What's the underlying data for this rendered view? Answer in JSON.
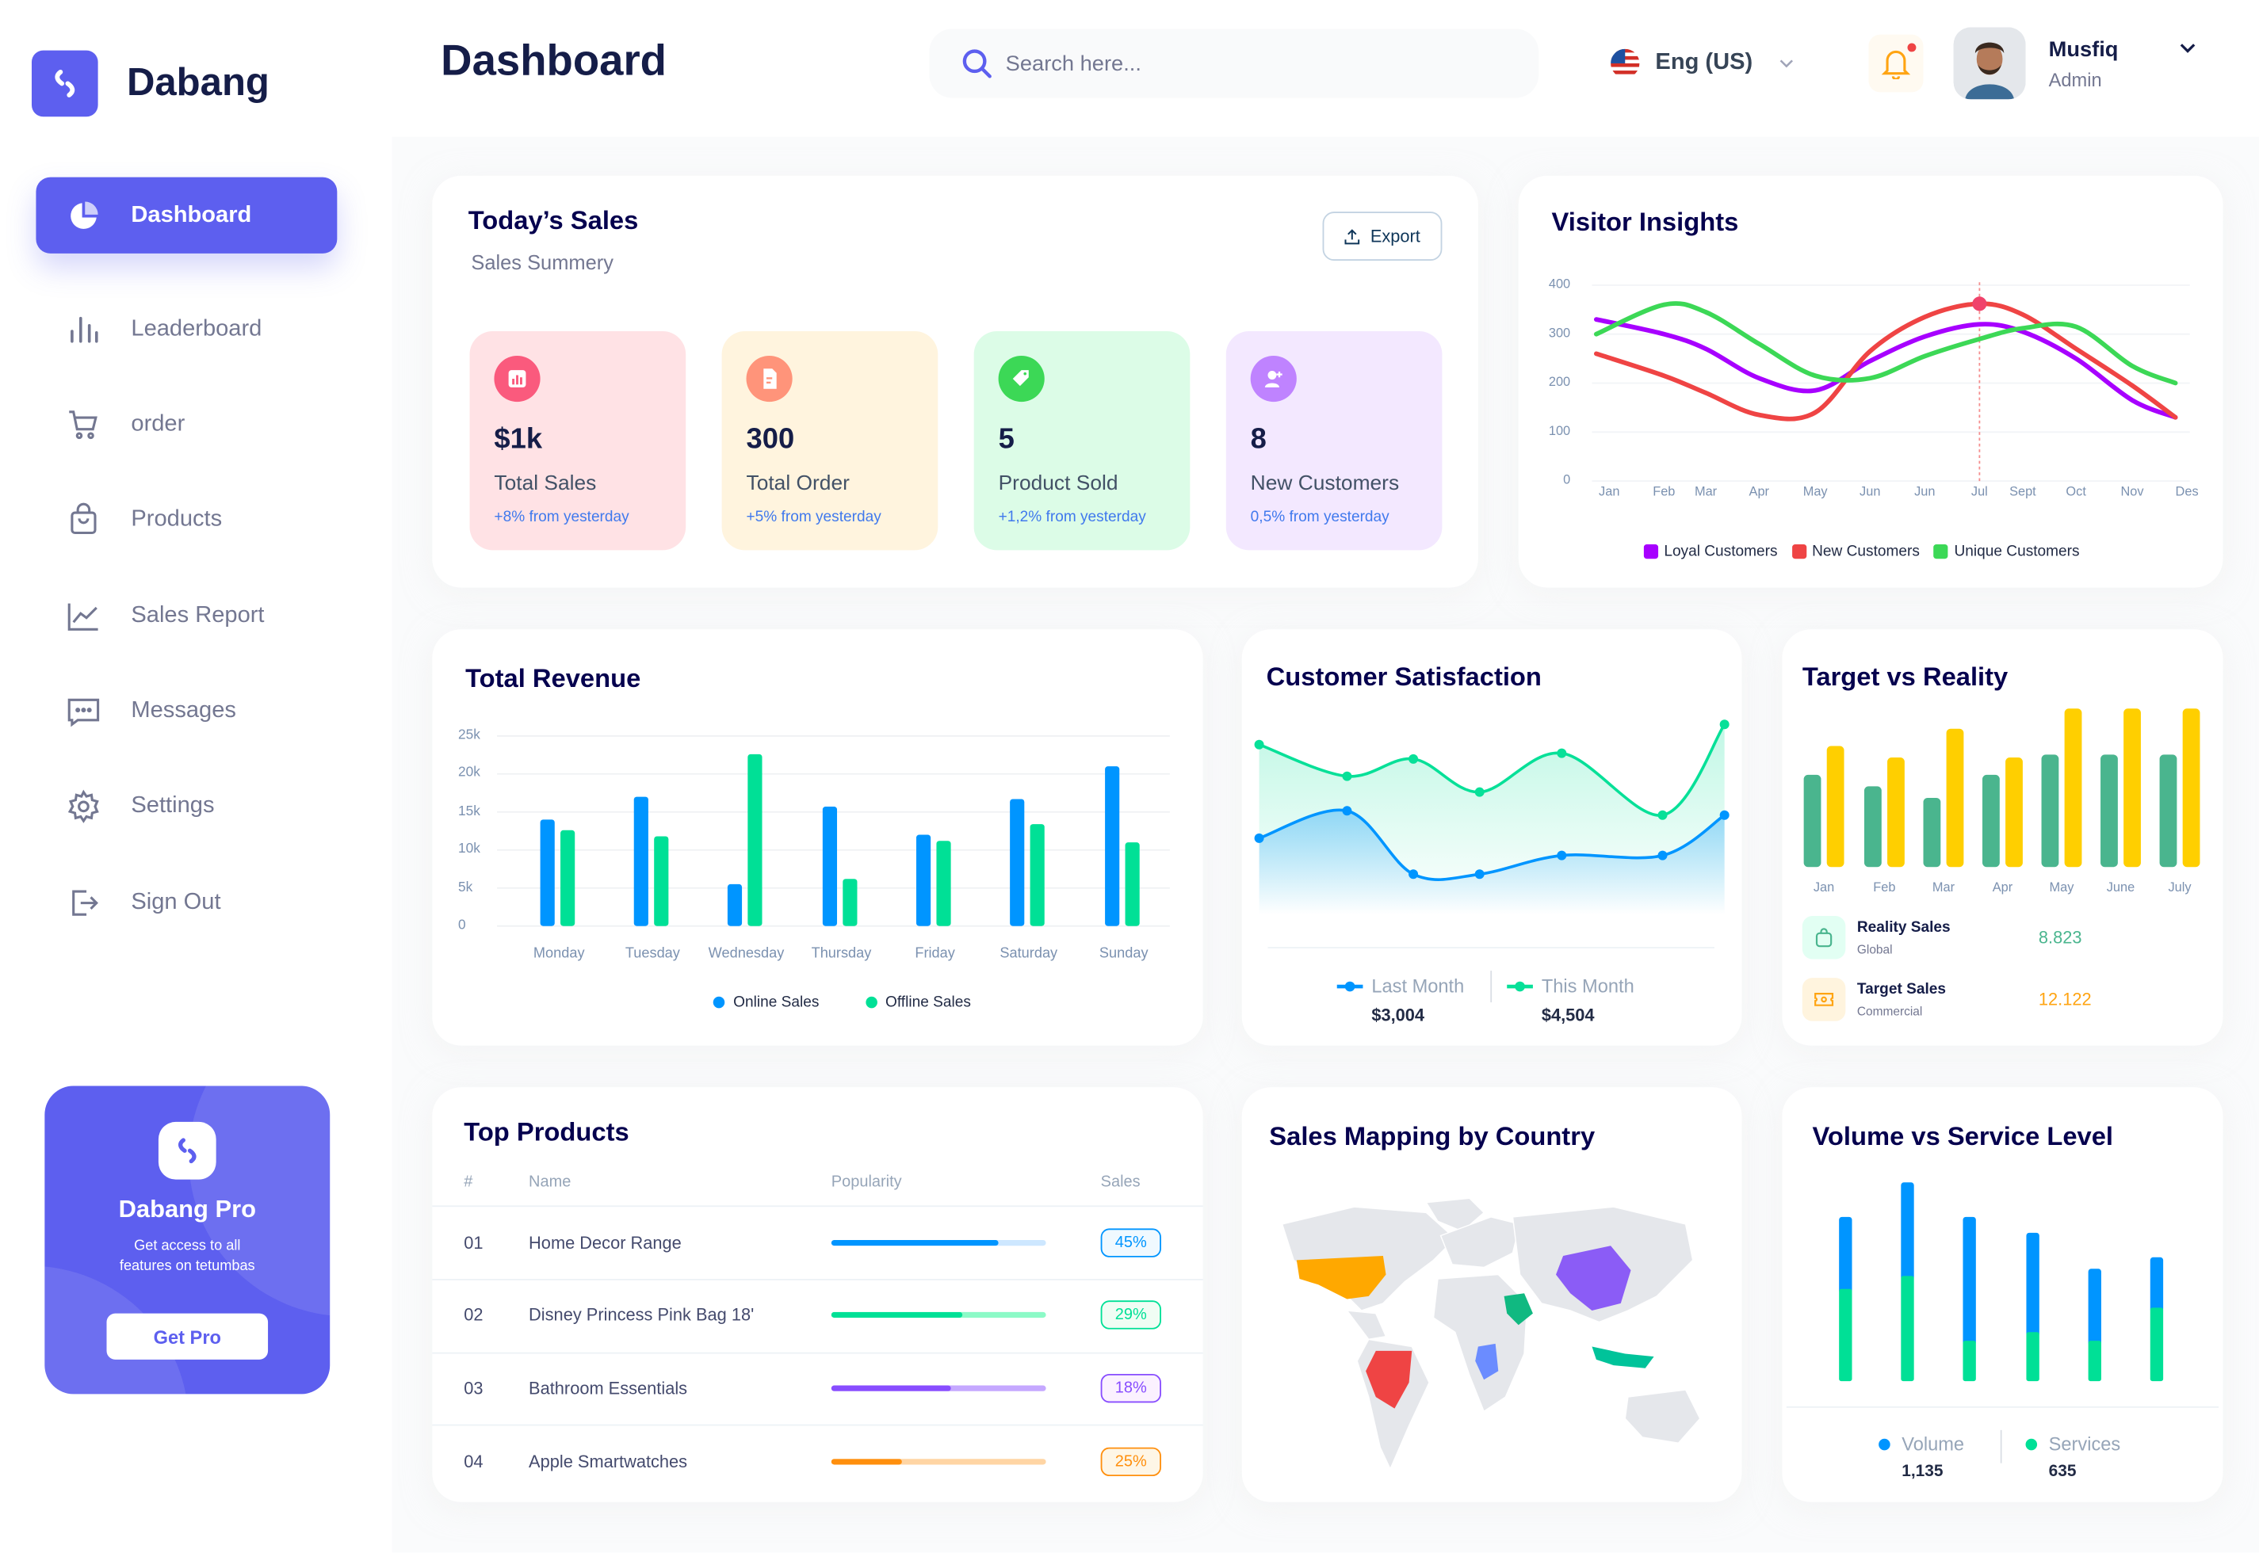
{
  "brand": {
    "name": "Dabang",
    "accent": "#5d5fef"
  },
  "header": {
    "title": "Dashboard",
    "search_placeholder": "Search here...",
    "language": "Eng (US)",
    "user": {
      "name": "Musfiq",
      "role": "Admin"
    },
    "notification_dot": true
  },
  "sidebar": {
    "items": [
      {
        "label": "Dashboard",
        "icon": "pie-chart-icon",
        "active": true
      },
      {
        "label": "Leaderboard",
        "icon": "bar-chart-icon"
      },
      {
        "label": "order",
        "icon": "cart-icon"
      },
      {
        "label": "Products",
        "icon": "shopping-bag-icon"
      },
      {
        "label": "Sales Report",
        "icon": "line-chart-icon"
      },
      {
        "label": "Messages",
        "icon": "message-icon"
      },
      {
        "label": "Settings",
        "icon": "gear-icon"
      },
      {
        "label": "Sign Out",
        "icon": "sign-out-icon"
      }
    ],
    "promo": {
      "title": "Dabang Pro",
      "text_line1": "Get access to all",
      "text_line2": "features on tetumbas",
      "button": "Get Pro"
    }
  },
  "todays_sales": {
    "title": "Today’s Sales",
    "subtitle": "Sales Summery",
    "export_label": "Export",
    "stats": [
      {
        "value": "$1k",
        "label": "Total Sales",
        "change": "+8% from yesterday",
        "bg": "#ffe2e5",
        "icon_bg": "#fa5a7d",
        "icon": "bar-chart-icon"
      },
      {
        "value": "300",
        "label": "Total Order",
        "change": "+5% from yesterday",
        "bg": "#fff4de",
        "icon_bg": "#ff947a",
        "icon": "document-icon"
      },
      {
        "value": "5",
        "label": "Product Sold",
        "change": "+1,2% from yesterday",
        "bg": "#dcfce7",
        "icon_bg": "#3cd856",
        "icon": "tag-icon"
      },
      {
        "value": "8",
        "label": "New Customers",
        "change": "0,5% from yesterday",
        "bg": "#f3e8ff",
        "icon_bg": "#bf83ff",
        "icon": "add-user-icon"
      }
    ]
  },
  "target_summary": [
    {
      "title": "Reality Sales",
      "subtitle": "Global",
      "value": "8.823",
      "color": "#4ab58e",
      "bg": "#e2fff3",
      "icon": "bag-icon"
    },
    {
      "title": "Target Sales",
      "subtitle": "Commercial",
      "value": "12.122",
      "color": "#ffa412",
      "bg": "#fff4de",
      "icon": "ticket-icon"
    }
  ],
  "top_products": {
    "title": "Top Products",
    "columns": [
      "#",
      "Name",
      "Popularity",
      "Sales"
    ],
    "rows": [
      {
        "rank": "01",
        "name": "Home Decor Range",
        "popularity": 0.78,
        "sales": "45%",
        "color": "#0095ff",
        "track": "#cde7ff",
        "badge_bg": "#f0f9ff"
      },
      {
        "rank": "02",
        "name": "Disney Princess Pink Bag 18'",
        "popularity": 0.61,
        "sales": "29%",
        "color": "#00e096",
        "track": "#8cfac7",
        "badge_bg": "#f0fdf4"
      },
      {
        "rank": "03",
        "name": "Bathroom Essentials",
        "popularity": 0.56,
        "sales": "18%",
        "color": "#884dff",
        "track": "#c5a8ff",
        "badge_bg": "#fbf1ff"
      },
      {
        "rank": "04",
        "name": "Apple Smartwatches",
        "popularity": 0.33,
        "sales": "25%",
        "color": "#ff8f0d",
        "track": "#ffd5a4",
        "badge_bg": "#fef6e6"
      }
    ]
  },
  "sales_mapping": {
    "title": "Sales Mapping by Country",
    "highlight_colors": {
      "usa": "#ffa800",
      "brazil": "#ef4444",
      "china": "#8b5cf6",
      "saudi_arabia": "#10b981",
      "central_africa": "#6b8cff",
      "indonesia": "#00c39a"
    }
  },
  "chart_data": [
    {
      "id": "visitor_insights",
      "type": "line",
      "title": "Visitor Insights",
      "categories": [
        "Jan",
        "Feb",
        "Mar",
        "Apr",
        "May",
        "Jun",
        "Jun",
        "Jul",
        "Sept",
        "Oct",
        "Nov",
        "Des"
      ],
      "ylim": [
        0,
        400
      ],
      "yticks": [
        "0",
        "100",
        "200",
        "300",
        "400"
      ],
      "grid": true,
      "legend": "bottom",
      "highlight": {
        "series": "New Customers",
        "category": "Jul"
      },
      "series": [
        {
          "name": "Loyal Customers",
          "color": "#a700ff",
          "values": [
            330,
            300,
            270,
            210,
            185,
            245,
            295,
            320,
            305,
            250,
            165,
            130
          ]
        },
        {
          "name": "New Customers",
          "color": "#ef4444",
          "values": [
            260,
            215,
            180,
            135,
            140,
            265,
            335,
            362,
            340,
            270,
            195,
            130
          ]
        },
        {
          "name": "Unique Customers",
          "color": "#3cd856",
          "values": [
            300,
            360,
            345,
            280,
            215,
            210,
            255,
            290,
            312,
            315,
            235,
            200
          ]
        }
      ]
    },
    {
      "id": "total_revenue",
      "type": "bar",
      "title": "Total Revenue",
      "categories": [
        "Monday",
        "Tuesday",
        "Wednesday",
        "Thursday",
        "Friday",
        "Saturday",
        "Sunday"
      ],
      "ylim": [
        0,
        25000
      ],
      "yticks": [
        "0",
        "5k",
        "10k",
        "15k",
        "20k",
        "25k"
      ],
      "grid": true,
      "legend": "bottom",
      "series": [
        {
          "name": "Online Sales",
          "color": "#0095ff",
          "values": [
            14000,
            17000,
            5500,
            15700,
            12000,
            16700,
            21000
          ]
        },
        {
          "name": "Offline Sales",
          "color": "#00e096",
          "values": [
            12600,
            11800,
            22600,
            6200,
            11200,
            13400,
            11000
          ]
        }
      ]
    },
    {
      "id": "customer_satisfaction",
      "type": "area",
      "title": "Customer Satisfaction",
      "legend": "bottom",
      "series": [
        {
          "name": "Last Month",
          "total": "$3,004",
          "color": "#0095ff",
          "values": [
            68,
            87,
            43,
            43,
            56,
            56,
            84
          ]
        },
        {
          "name": "This Month",
          "total": "$4,504",
          "color": "#07e098",
          "values": [
            133,
            111,
            123,
            100,
            127,
            84,
            147
          ]
        }
      ]
    },
    {
      "id": "target_vs_reality",
      "type": "bar",
      "title": "Target vs Reality",
      "categories": [
        "Jan",
        "Feb",
        "Mar",
        "Apr",
        "May",
        "June",
        "July"
      ],
      "series": [
        {
          "name": "Reality Sales",
          "color": "#4ab58e",
          "values": [
            64,
            56,
            48,
            64,
            78,
            78,
            78
          ]
        },
        {
          "name": "Target Sales",
          "color": "#ffcf00",
          "values": [
            84,
            76,
            96,
            76,
            110,
            110,
            110
          ]
        }
      ]
    },
    {
      "id": "volume_vs_service",
      "type": "bar",
      "stacked": true,
      "title": "Volume vs Service Level",
      "legend": "bottom",
      "series": [
        {
          "name": "Services",
          "total": "635",
          "color": "#00e096",
          "values": [
            64,
            73,
            28,
            34,
            28,
            51
          ]
        },
        {
          "name": "Volume",
          "total": "1,135",
          "color": "#0095ff",
          "values": [
            50,
            65,
            86,
            69,
            50,
            35
          ]
        }
      ]
    }
  ]
}
